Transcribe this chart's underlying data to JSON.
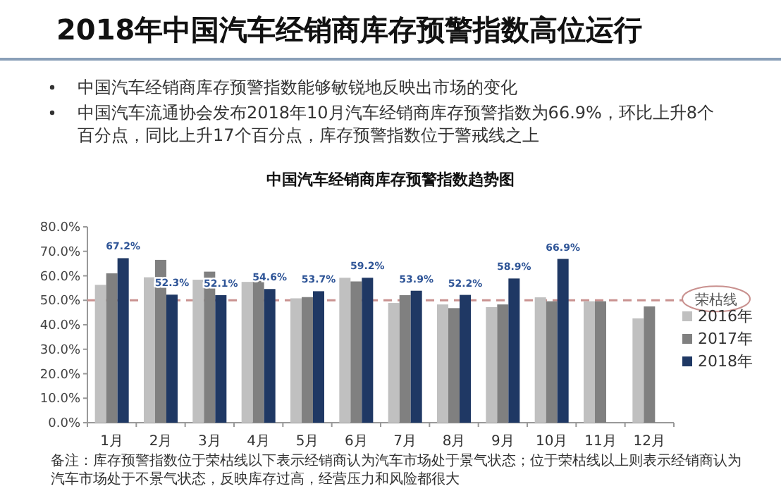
{
  "chart_data": {
    "type": "bar",
    "title": "2018年中国汽车经销商库存预警指数高位运行",
    "subtitle": "中国汽车经销商库存预警指数趋势图",
    "annotations": [
      "中国汽车经销商库存预警指数能够敏锐地反映出市场的变化",
      "中国汽车流通协会发布2018年10月汽车经销商库存预警指数为66.9%，环比上升8个百分点，同比上升17个百分点，库存预警指数位于警戒线之上",
      "备注：库存预警指数位于荣枯线以下表示经销商认为汽车市场处于景气状态；位于荣枯线以上则表示经销商认为汽车市场处于不景气状态，反映库存过高，经营压力和风险都很大"
    ],
    "categories": [
      "1月",
      "2月",
      "3月",
      "4月",
      "5月",
      "6月",
      "7月",
      "8月",
      "9月",
      "10月",
      "11月",
      "12月"
    ],
    "series": [
      {
        "name": "2016年",
        "color": "#c0c0c0",
        "values": [
          56.3,
          59.4,
          58.4,
          57.5,
          50.8,
          59.2,
          48.9,
          48.3,
          47.2,
          51.2,
          49.6,
          42.6
        ]
      },
      {
        "name": "2017年",
        "color": "#808080",
        "values": [
          61.0,
          66.5,
          61.7,
          58.8,
          51.3,
          57.7,
          52.1,
          46.8,
          48.3,
          49.6,
          49.6,
          47.5
        ]
      },
      {
        "name": "2018年",
        "color": "#1f3864",
        "values": [
          67.2,
          52.3,
          52.1,
          54.6,
          53.7,
          59.2,
          53.9,
          52.2,
          58.9,
          66.9,
          null,
          null
        ],
        "value_labels": [
          "67.2%",
          "52.3%",
          "52.1%",
          "54.6%",
          "53.7%",
          "59.2%",
          "53.9%",
          "52.2%",
          "58.9%",
          "66.9%",
          null,
          null
        ]
      }
    ],
    "ylim": [
      0,
      80
    ],
    "yticks": [
      {
        "value": 0,
        "label": "0.0%"
      },
      {
        "value": 10,
        "label": "10.0%"
      },
      {
        "value": 20,
        "label": "20.0%"
      },
      {
        "value": 30,
        "label": "30.0%"
      },
      {
        "value": 40,
        "label": "40.0%"
      },
      {
        "value": 50,
        "label": "50.0%"
      },
      {
        "value": 60,
        "label": "60.0%"
      },
      {
        "value": 70,
        "label": "70.0%"
      },
      {
        "value": 80,
        "label": "80.0%"
      }
    ],
    "ref_lines": [
      {
        "axis": "y",
        "value": 50,
        "label": "荣枯线",
        "color": "#c9918f",
        "line_style": "dashed"
      }
    ],
    "legend": "right",
    "grid": false
  }
}
